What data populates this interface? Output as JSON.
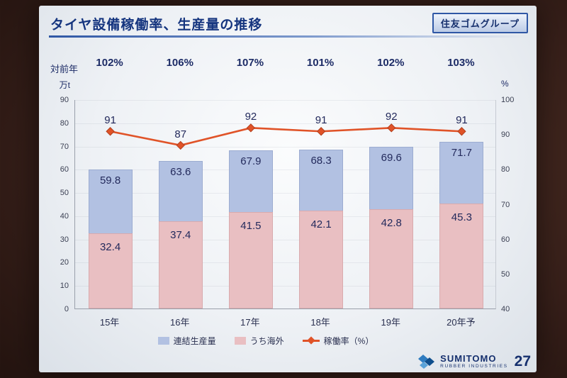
{
  "slide": {
    "title": "タイヤ設備稼働率、生産量の推移",
    "company_badge": "住友ゴムグループ",
    "page_number": "27",
    "logo_line1": "SUMITOMO",
    "logo_line2": "RUBBER INDUSTRIES"
  },
  "chart_data": {
    "type": "bar+line",
    "title": "タイヤ設備稼働率、生産量の推移",
    "categories": [
      "15年",
      "16年",
      "17年",
      "18年",
      "19年",
      "20年予"
    ],
    "yoy_label": "対前年",
    "yoy_values": [
      "102%",
      "106%",
      "107%",
      "101%",
      "102%",
      "103%"
    ],
    "left_axis": {
      "label": "万t",
      "min": 0,
      "max": 90,
      "ticks": [
        0,
        10,
        20,
        30,
        40,
        50,
        60,
        70,
        80,
        90
      ]
    },
    "right_axis": {
      "label": "%",
      "min": 40,
      "max": 100,
      "ticks": [
        40,
        50,
        60,
        70,
        80,
        90,
        100
      ]
    },
    "series": [
      {
        "name": "連結生産量",
        "type": "bar-total",
        "axis": "left",
        "color": "#b2c1e2",
        "values": [
          59.8,
          63.6,
          67.9,
          68.3,
          69.6,
          71.7
        ]
      },
      {
        "name": "うち海外",
        "type": "bar-part",
        "axis": "left",
        "color": "#e9bfc2",
        "values": [
          32.4,
          37.4,
          41.5,
          42.1,
          42.8,
          45.3
        ]
      },
      {
        "name": "稼働率（%）",
        "type": "line",
        "axis": "right",
        "color": "#e05328",
        "values": [
          91,
          87,
          92,
          91,
          92,
          91
        ]
      }
    ],
    "legend_position": "bottom",
    "grid": "faint-horizontal"
  }
}
